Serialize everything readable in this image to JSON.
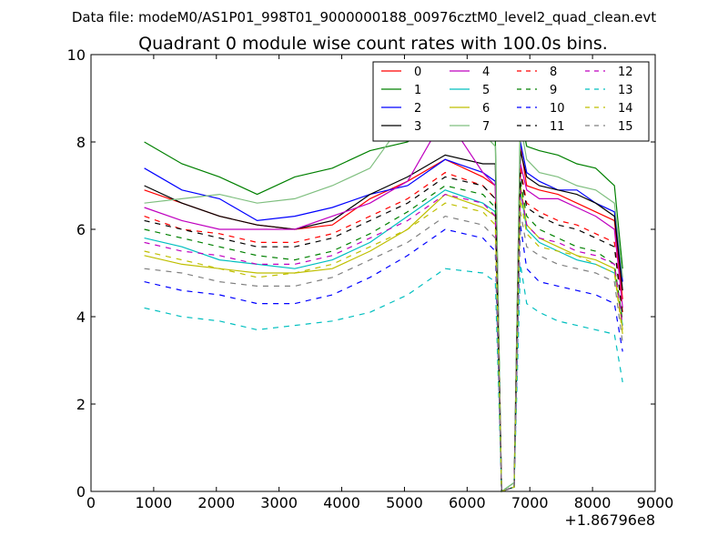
{
  "figure": {
    "suptitle": "Data file: modeM0/AS1P01_998T01_9000000188_00976cztM0_level2_quad_clean.evt"
  },
  "chart_data": {
    "type": "line",
    "title": "Quadrant 0 module wise count rates with 100.0s bins.",
    "xlabel": "",
    "ylabel": "",
    "x_offset_label": "+1.86796e8",
    "xlim": [
      0,
      9000
    ],
    "ylim": [
      0,
      10
    ],
    "xticks": [
      0,
      1000,
      2000,
      3000,
      4000,
      5000,
      6000,
      7000,
      8000,
      9000
    ],
    "yticks": [
      0,
      2,
      4,
      6,
      8,
      10
    ],
    "grid": false,
    "legend_placement": "top-right",
    "legend_columns": 4,
    "x": [
      850,
      1450,
      2050,
      2650,
      3250,
      3850,
      4450,
      5050,
      5650,
      6250,
      6450,
      6550,
      6750,
      6850,
      6950,
      7150,
      7450,
      7750,
      8050,
      8350,
      8480
    ],
    "series": [
      {
        "name": "0",
        "color": "#ff0000",
        "dash": "solid",
        "values": [
          6.9,
          6.6,
          6.3,
          6.1,
          6.0,
          6.1,
          6.7,
          7.1,
          7.6,
          7.2,
          7.0,
          0.0,
          0.1,
          7.9,
          7.0,
          6.9,
          6.8,
          6.6,
          6.4,
          6.2,
          4.4
        ]
      },
      {
        "name": "1",
        "color": "#008000",
        "dash": "solid",
        "values": [
          8.0,
          7.5,
          7.2,
          6.8,
          7.2,
          7.4,
          7.8,
          8.0,
          8.6,
          8.2,
          8.1,
          0.0,
          0.2,
          8.6,
          7.9,
          7.8,
          7.7,
          7.5,
          7.4,
          7.0,
          5.1
        ]
      },
      {
        "name": "2",
        "color": "#0000ff",
        "dash": "solid",
        "values": [
          7.4,
          6.9,
          6.7,
          6.2,
          6.3,
          6.5,
          6.8,
          7.0,
          7.6,
          7.3,
          7.1,
          0.0,
          0.1,
          8.0,
          7.3,
          7.1,
          6.9,
          6.9,
          6.6,
          6.4,
          4.8
        ]
      },
      {
        "name": "3",
        "color": "#000000",
        "dash": "solid",
        "values": [
          7.0,
          6.6,
          6.3,
          6.1,
          6.0,
          6.2,
          6.8,
          7.2,
          7.7,
          7.5,
          7.5,
          0.0,
          0.1,
          7.8,
          7.2,
          7.0,
          6.9,
          6.8,
          6.6,
          6.3,
          4.6
        ]
      },
      {
        "name": "4",
        "color": "#bf00bf",
        "dash": "solid",
        "values": [
          6.5,
          6.2,
          6.0,
          6.0,
          6.0,
          6.3,
          6.6,
          7.1,
          8.6,
          7.3,
          7.0,
          0.0,
          0.1,
          7.5,
          6.9,
          6.7,
          6.7,
          6.5,
          6.3,
          6.0,
          4.2
        ]
      },
      {
        "name": "5",
        "color": "#00bfbf",
        "dash": "solid",
        "values": [
          5.8,
          5.6,
          5.3,
          5.2,
          5.1,
          5.3,
          5.7,
          6.3,
          6.9,
          6.6,
          6.4,
          0.0,
          0.1,
          6.9,
          6.0,
          5.7,
          5.5,
          5.3,
          5.2,
          5.0,
          3.8
        ]
      },
      {
        "name": "6",
        "color": "#bfbf00",
        "dash": "solid",
        "values": [
          5.4,
          5.2,
          5.1,
          5.0,
          5.0,
          5.1,
          5.5,
          6.0,
          6.8,
          6.5,
          6.3,
          0.0,
          0.1,
          7.0,
          6.1,
          5.8,
          5.6,
          5.4,
          5.3,
          5.1,
          3.7
        ]
      },
      {
        "name": "7",
        "color": "#7fbf7f",
        "dash": "solid",
        "values": [
          6.6,
          6.7,
          6.8,
          6.6,
          6.7,
          7.0,
          7.4,
          8.6,
          9.3,
          8.2,
          7.9,
          0.0,
          0.2,
          8.4,
          7.6,
          7.3,
          7.2,
          7.0,
          6.9,
          6.6,
          4.9
        ]
      },
      {
        "name": "8",
        "color": "#ff0000",
        "dash": "dashed",
        "values": [
          6.3,
          6.0,
          5.9,
          5.7,
          5.7,
          5.9,
          6.3,
          6.7,
          7.3,
          7.0,
          6.7,
          0.0,
          0.1,
          7.4,
          6.6,
          6.4,
          6.2,
          6.1,
          5.9,
          5.7,
          4.1
        ]
      },
      {
        "name": "9",
        "color": "#008000",
        "dash": "dashed",
        "values": [
          6.0,
          5.8,
          5.6,
          5.4,
          5.3,
          5.5,
          5.9,
          6.4,
          7.0,
          6.8,
          6.5,
          0.0,
          0.1,
          7.1,
          6.3,
          6.0,
          5.8,
          5.6,
          5.5,
          5.2,
          3.9
        ]
      },
      {
        "name": "10",
        "color": "#0000ff",
        "dash": "dashed",
        "values": [
          4.8,
          4.6,
          4.5,
          4.3,
          4.3,
          4.5,
          4.9,
          5.4,
          6.0,
          5.8,
          5.5,
          0.0,
          0.1,
          6.1,
          5.1,
          4.8,
          4.7,
          4.6,
          4.5,
          4.3,
          3.2
        ]
      },
      {
        "name": "11",
        "color": "#000000",
        "dash": "dashed",
        "values": [
          6.2,
          6.0,
          5.8,
          5.6,
          5.6,
          5.8,
          6.2,
          6.6,
          7.2,
          7.0,
          6.7,
          0.0,
          0.1,
          7.3,
          6.5,
          6.3,
          6.1,
          6.0,
          5.8,
          5.6,
          4.0
        ]
      },
      {
        "name": "12",
        "color": "#bf00bf",
        "dash": "dashed",
        "values": [
          5.7,
          5.5,
          5.4,
          5.2,
          5.2,
          5.4,
          5.8,
          6.2,
          6.8,
          6.6,
          6.3,
          0.0,
          0.1,
          6.9,
          6.1,
          5.8,
          5.7,
          5.5,
          5.4,
          5.2,
          3.8
        ]
      },
      {
        "name": "13",
        "color": "#00bfbf",
        "dash": "dashed",
        "values": [
          4.2,
          4.0,
          3.9,
          3.7,
          3.8,
          3.9,
          4.1,
          4.5,
          5.1,
          5.0,
          4.8,
          0.0,
          0.1,
          5.2,
          4.3,
          4.1,
          3.9,
          3.8,
          3.7,
          3.6,
          2.5
        ]
      },
      {
        "name": "14",
        "color": "#bfbf00",
        "dash": "dashed",
        "values": [
          5.5,
          5.3,
          5.1,
          4.9,
          5.0,
          5.2,
          5.6,
          6.0,
          6.6,
          6.4,
          6.1,
          0.0,
          0.1,
          6.7,
          5.9,
          5.6,
          5.5,
          5.4,
          5.2,
          5.0,
          3.6
        ]
      },
      {
        "name": "15",
        "color": "#808080",
        "dash": "dashed",
        "values": [
          5.1,
          5.0,
          4.8,
          4.7,
          4.7,
          4.9,
          5.3,
          5.7,
          6.3,
          6.1,
          5.8,
          0.0,
          0.1,
          6.4,
          5.6,
          5.4,
          5.2,
          5.1,
          5.0,
          4.8,
          3.4
        ]
      }
    ]
  }
}
